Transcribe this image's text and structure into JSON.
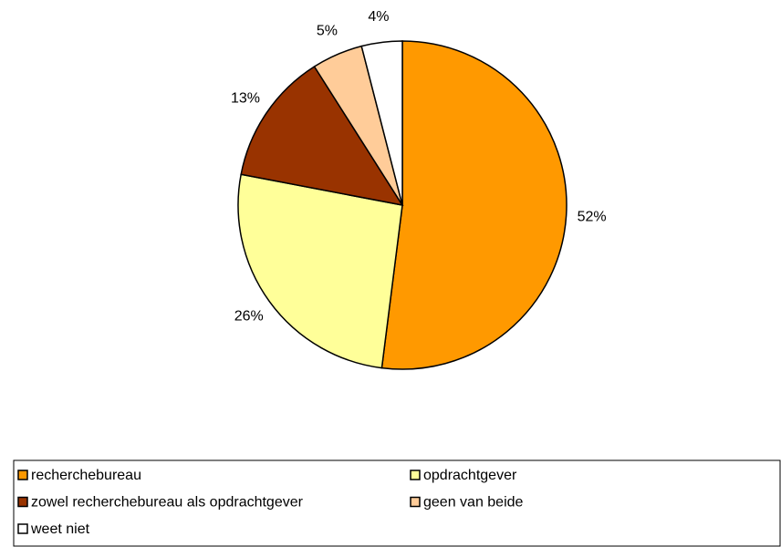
{
  "chart_data": {
    "type": "pie",
    "categories": [
      "recherchebureau",
      "opdrachtgever",
      "zowel recherchebureau als opdrachtgever",
      "geen van beide",
      "weet niet"
    ],
    "values": [
      52,
      26,
      13,
      5,
      4
    ],
    "value_labels": [
      "52%",
      "26%",
      "13%",
      "5%",
      "4%"
    ],
    "colors": [
      "#ff9900",
      "#ffff99",
      "#993300",
      "#ffcc99",
      "#ffffff"
    ],
    "legend": "bottom"
  }
}
